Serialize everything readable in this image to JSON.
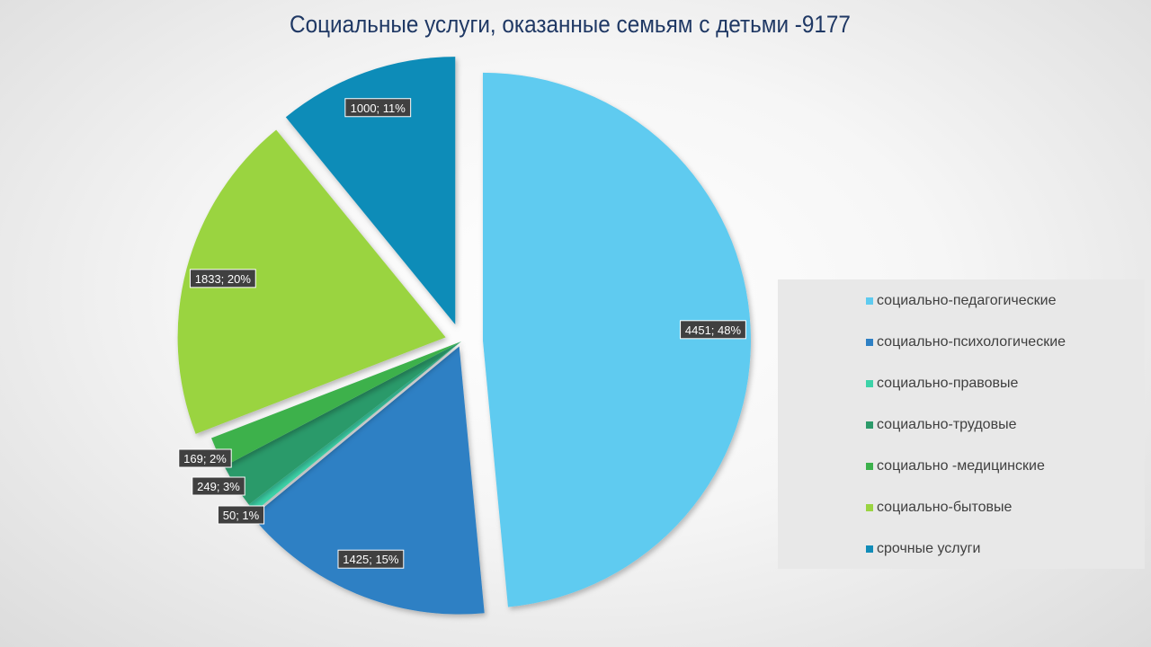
{
  "chart_data": {
    "type": "pie",
    "title": "Социальные услуги,  оказанные семьям с детьми -9177",
    "legend_position": "right",
    "slices": [
      {
        "label": "социально-педагогические",
        "value": 4451,
        "percent": "48%",
        "color": "#5ecbf0"
      },
      {
        "label": "социально-психологические",
        "value": 1425,
        "percent": "15%",
        "color": "#2e80c4"
      },
      {
        "label": "социально-правовые",
        "value": 50,
        "percent": "1%",
        "color": "#3dd3a8"
      },
      {
        "label": "социально-трудовые",
        "value": 249,
        "percent": "3%",
        "color": "#2c9a6a"
      },
      {
        "label": "социально -медицинские",
        "value": 169,
        "percent": "2%",
        "color": "#3cb14c"
      },
      {
        "label": "социально-бытовые",
        "value": 1833,
        "percent": "20%",
        "color": "#9ad441"
      },
      {
        "label": "срочные услуги",
        "value": 1000,
        "percent": "11%",
        "color": "#118cb8"
      }
    ]
  }
}
